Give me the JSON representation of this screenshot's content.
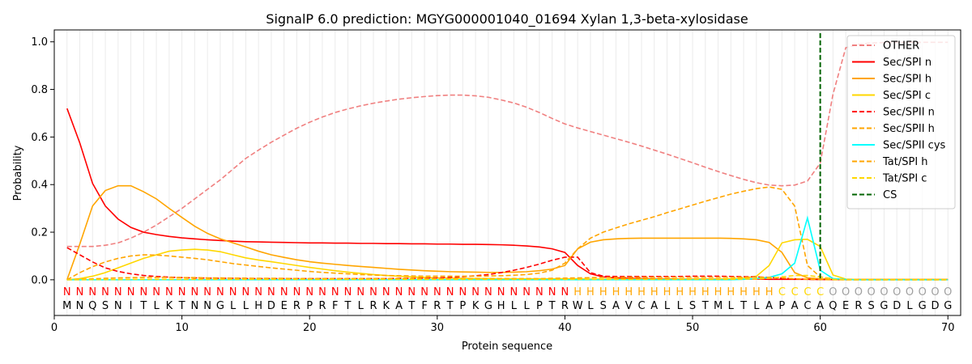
{
  "chart_data": {
    "type": "line",
    "title": "SignalP 6.0 prediction: MGYG000001040_01694 Xylan 1,3-beta-xylosidase",
    "xlabel": "Protein sequence",
    "ylabel": "Probability",
    "xlim": [
      0,
      71
    ],
    "ylim": [
      -0.15,
      1.05
    ],
    "xticks": [
      0,
      10,
      20,
      30,
      40,
      50,
      60,
      70
    ],
    "yticks": [
      0.0,
      0.2,
      0.4,
      0.6,
      0.8,
      1.0
    ],
    "ytick_labels": [
      "0.0",
      "0.2",
      "0.4",
      "0.6",
      "0.8",
      "1.0"
    ],
    "legend_position": "top-right",
    "sequence": [
      "M",
      "N",
      "Q",
      "S",
      "N",
      "I",
      "T",
      "L",
      "K",
      "T",
      "N",
      "N",
      "G",
      "L",
      "L",
      "H",
      "D",
      "E",
      "R",
      "P",
      "R",
      "F",
      "T",
      "L",
      "R",
      "K",
      "A",
      "T",
      "F",
      "R",
      "T",
      "P",
      "K",
      "G",
      "H",
      "L",
      "L",
      "P",
      "T",
      "R",
      "W",
      "L",
      "S",
      "A",
      "V",
      "C",
      "A",
      "L",
      "L",
      "S",
      "T",
      "M",
      "L",
      "T",
      "L",
      "A",
      "P",
      "A",
      "C",
      "A",
      "Q",
      "E",
      "R",
      "S",
      "G",
      "D",
      "L",
      "G",
      "D",
      "G"
    ],
    "regions": [
      "N",
      "N",
      "N",
      "N",
      "N",
      "N",
      "N",
      "N",
      "N",
      "N",
      "N",
      "N",
      "N",
      "N",
      "N",
      "N",
      "N",
      "N",
      "N",
      "N",
      "N",
      "N",
      "N",
      "N",
      "N",
      "N",
      "N",
      "N",
      "N",
      "N",
      "N",
      "N",
      "N",
      "N",
      "N",
      "N",
      "N",
      "N",
      "N",
      "N",
      "H",
      "H",
      "H",
      "H",
      "H",
      "H",
      "H",
      "H",
      "H",
      "H",
      "H",
      "H",
      "H",
      "H",
      "H",
      "H",
      "C",
      "C",
      "C",
      "C",
      "O",
      "O",
      "O",
      "O",
      "O",
      "O",
      "O",
      "O",
      "O",
      "O"
    ],
    "region_colors": {
      "N": "#ff0000",
      "H": "#ffa500",
      "C": "#ffd700",
      "O": "#a0a0a0"
    },
    "cs_position": 60,
    "series": [
      {
        "name": "OTHER",
        "color": "#f08080",
        "dash": "dashed",
        "values": [
          0.14,
          0.14,
          0.14,
          0.145,
          0.155,
          0.175,
          0.2,
          0.23,
          0.265,
          0.3,
          0.34,
          0.38,
          0.42,
          0.465,
          0.51,
          0.545,
          0.578,
          0.608,
          0.637,
          0.662,
          0.684,
          0.703,
          0.718,
          0.731,
          0.742,
          0.751,
          0.759,
          0.765,
          0.77,
          0.774,
          0.776,
          0.776,
          0.773,
          0.767,
          0.756,
          0.743,
          0.725,
          0.703,
          0.678,
          0.655,
          0.638,
          0.623,
          0.608,
          0.593,
          0.578,
          0.562,
          0.545,
          0.528,
          0.51,
          0.492,
          0.473,
          0.455,
          0.438,
          0.422,
          0.408,
          0.398,
          0.395,
          0.398,
          0.415,
          0.49,
          0.78,
          0.975,
          0.99,
          0.995,
          0.997,
          0.998,
          0.998,
          0.998,
          0.998,
          0.998
        ]
      },
      {
        "name": "Sec/SPI n",
        "color": "#ff0000",
        "dash": "solid",
        "values": [
          0.72,
          0.575,
          0.405,
          0.31,
          0.255,
          0.22,
          0.2,
          0.19,
          0.182,
          0.176,
          0.172,
          0.168,
          0.165,
          0.162,
          0.16,
          0.159,
          0.158,
          0.157,
          0.156,
          0.155,
          0.155,
          0.154,
          0.154,
          0.153,
          0.153,
          0.152,
          0.152,
          0.151,
          0.151,
          0.15,
          0.15,
          0.149,
          0.149,
          0.148,
          0.147,
          0.145,
          0.142,
          0.138,
          0.13,
          0.115,
          0.06,
          0.025,
          0.012,
          0.008,
          0.006,
          0.005,
          0.004,
          0.004,
          0.003,
          0.003,
          0.003,
          0.003,
          0.003,
          0.003,
          0.003,
          0.002,
          0.002,
          0.002,
          0.002,
          0.001,
          0.001,
          0.001,
          0.001,
          0.001,
          0.001,
          0.001,
          0.001,
          0.001,
          0.001,
          0.001
        ]
      },
      {
        "name": "Sec/SPI h",
        "color": "#ffa500",
        "dash": "solid",
        "values": [
          0.0,
          0.15,
          0.31,
          0.375,
          0.395,
          0.395,
          0.37,
          0.34,
          0.3,
          0.262,
          0.225,
          0.195,
          0.172,
          0.155,
          0.138,
          0.12,
          0.105,
          0.094,
          0.084,
          0.076,
          0.07,
          0.065,
          0.06,
          0.056,
          0.052,
          0.048,
          0.044,
          0.041,
          0.038,
          0.036,
          0.034,
          0.033,
          0.032,
          0.031,
          0.031,
          0.032,
          0.034,
          0.038,
          0.045,
          0.06,
          0.13,
          0.158,
          0.168,
          0.172,
          0.174,
          0.175,
          0.175,
          0.175,
          0.175,
          0.175,
          0.175,
          0.175,
          0.174,
          0.172,
          0.168,
          0.157,
          0.115,
          0.03,
          0.008,
          0.004,
          0.002,
          0.001,
          0.001,
          0.001,
          0.001,
          0.001,
          0.001,
          0.001,
          0.001,
          0.001
        ]
      },
      {
        "name": "Sec/SPI c",
        "color": "#ffd700",
        "dash": "solid",
        "values": [
          0.0,
          0.005,
          0.015,
          0.03,
          0.05,
          0.07,
          0.09,
          0.105,
          0.12,
          0.125,
          0.128,
          0.125,
          0.118,
          0.105,
          0.092,
          0.083,
          0.076,
          0.068,
          0.06,
          0.052,
          0.045,
          0.038,
          0.032,
          0.027,
          0.022,
          0.018,
          0.015,
          0.012,
          0.01,
          0.008,
          0.007,
          0.006,
          0.005,
          0.005,
          0.004,
          0.004,
          0.004,
          0.004,
          0.004,
          0.004,
          0.004,
          0.003,
          0.003,
          0.003,
          0.003,
          0.003,
          0.003,
          0.003,
          0.003,
          0.003,
          0.003,
          0.003,
          0.004,
          0.006,
          0.015,
          0.06,
          0.155,
          0.168,
          0.17,
          0.14,
          0.02,
          0.003,
          0.001,
          0.001,
          0.001,
          0.001,
          0.001,
          0.001,
          0.001,
          0.001
        ]
      },
      {
        "name": "Sec/SPII n",
        "color": "#ff0000",
        "dash": "dashed",
        "values": [
          0.135,
          0.105,
          0.075,
          0.05,
          0.035,
          0.025,
          0.018,
          0.014,
          0.011,
          0.009,
          0.008,
          0.007,
          0.006,
          0.006,
          0.005,
          0.005,
          0.005,
          0.005,
          0.005,
          0.005,
          0.005,
          0.005,
          0.005,
          0.005,
          0.005,
          0.005,
          0.006,
          0.006,
          0.007,
          0.008,
          0.01,
          0.013,
          0.017,
          0.022,
          0.03,
          0.04,
          0.052,
          0.066,
          0.082,
          0.095,
          0.095,
          0.03,
          0.015,
          0.014,
          0.014,
          0.014,
          0.014,
          0.014,
          0.014,
          0.015,
          0.015,
          0.015,
          0.014,
          0.013,
          0.012,
          0.01,
          0.007,
          0.004,
          0.002,
          0.001,
          0.001,
          0.0,
          0.0,
          0.0,
          0.0,
          0.0,
          0.0,
          0.0,
          0.0,
          0.0
        ]
      },
      {
        "name": "Sec/SPII h",
        "color": "#ffa500",
        "dash": "dashed",
        "values": [
          0.0,
          0.03,
          0.055,
          0.075,
          0.09,
          0.1,
          0.105,
          0.104,
          0.1,
          0.095,
          0.09,
          0.084,
          0.076,
          0.068,
          0.062,
          0.056,
          0.05,
          0.045,
          0.04,
          0.035,
          0.031,
          0.028,
          0.025,
          0.022,
          0.02,
          0.018,
          0.017,
          0.016,
          0.015,
          0.015,
          0.015,
          0.015,
          0.015,
          0.016,
          0.017,
          0.019,
          0.022,
          0.028,
          0.04,
          0.07,
          0.13,
          0.175,
          0.2,
          0.218,
          0.235,
          0.25,
          0.265,
          0.282,
          0.298,
          0.314,
          0.33,
          0.345,
          0.36,
          0.372,
          0.383,
          0.39,
          0.38,
          0.31,
          0.06,
          0.012,
          0.004,
          0.002,
          0.001,
          0.001,
          0.001,
          0.001,
          0.001,
          0.001,
          0.001,
          0.001
        ]
      },
      {
        "name": "Sec/SPII cys",
        "color": "#00ffff",
        "dash": "solid",
        "values": [
          0.0,
          0.0,
          0.0,
          0.0,
          0.0,
          0.0,
          0.0,
          0.0,
          0.0,
          0.0,
          0.0,
          0.0,
          0.0,
          0.0,
          0.0,
          0.0,
          0.0,
          0.0,
          0.0,
          0.0,
          0.0,
          0.0,
          0.0,
          0.0,
          0.0,
          0.0,
          0.0,
          0.0,
          0.0,
          0.0,
          0.0,
          0.0,
          0.0,
          0.0,
          0.0,
          0.0,
          0.0,
          0.0,
          0.0,
          0.0,
          0.0,
          0.0,
          0.0,
          0.0,
          0.0,
          0.0,
          0.0,
          0.0,
          0.0,
          0.0,
          0.0,
          0.0,
          0.0,
          0.002,
          0.005,
          0.01,
          0.025,
          0.07,
          0.26,
          0.04,
          0.005,
          0.001,
          0.0,
          0.0,
          0.0,
          0.0,
          0.0,
          0.0,
          0.0,
          0.0
        ]
      },
      {
        "name": "Tat/SPI h",
        "color": "#ffa500",
        "dash": "dashed",
        "values": [
          0.0,
          0.002,
          0.004,
          0.006,
          0.008,
          0.009,
          0.01,
          0.01,
          0.01,
          0.009,
          0.009,
          0.008,
          0.008,
          0.007,
          0.007,
          0.006,
          0.006,
          0.006,
          0.005,
          0.005,
          0.005,
          0.005,
          0.005,
          0.005,
          0.005,
          0.005,
          0.005,
          0.005,
          0.005,
          0.005,
          0.005,
          0.005,
          0.005,
          0.005,
          0.005,
          0.005,
          0.005,
          0.005,
          0.006,
          0.007,
          0.008,
          0.009,
          0.01,
          0.01,
          0.011,
          0.011,
          0.011,
          0.011,
          0.011,
          0.011,
          0.011,
          0.011,
          0.011,
          0.011,
          0.011,
          0.01,
          0.008,
          0.004,
          0.002,
          0.001,
          0.0,
          0.0,
          0.0,
          0.0,
          0.0,
          0.0,
          0.0,
          0.0,
          0.0,
          0.0
        ]
      },
      {
        "name": "Tat/SPI c",
        "color": "#ffd700",
        "dash": "dashed",
        "values": [
          0.0,
          0.0,
          0.001,
          0.001,
          0.001,
          0.002,
          0.002,
          0.002,
          0.002,
          0.002,
          0.002,
          0.002,
          0.002,
          0.002,
          0.002,
          0.002,
          0.002,
          0.002,
          0.002,
          0.002,
          0.002,
          0.002,
          0.002,
          0.002,
          0.002,
          0.002,
          0.002,
          0.002,
          0.002,
          0.002,
          0.002,
          0.002,
          0.002,
          0.002,
          0.002,
          0.002,
          0.002,
          0.002,
          0.002,
          0.002,
          0.002,
          0.002,
          0.002,
          0.002,
          0.002,
          0.002,
          0.002,
          0.002,
          0.002,
          0.002,
          0.002,
          0.002,
          0.002,
          0.003,
          0.004,
          0.006,
          0.012,
          0.018,
          0.018,
          0.012,
          0.002,
          0.0,
          0.0,
          0.0,
          0.0,
          0.0,
          0.0,
          0.0,
          0.0,
          0.0
        ]
      }
    ],
    "legend": [
      {
        "name": "OTHER",
        "color": "#f08080",
        "dash": "dashed"
      },
      {
        "name": "Sec/SPI n",
        "color": "#ff0000",
        "dash": "solid"
      },
      {
        "name": "Sec/SPI h",
        "color": "#ffa500",
        "dash": "solid"
      },
      {
        "name": "Sec/SPI c",
        "color": "#ffd700",
        "dash": "solid"
      },
      {
        "name": "Sec/SPII n",
        "color": "#ff0000",
        "dash": "dashed"
      },
      {
        "name": "Sec/SPII h",
        "color": "#ffa500",
        "dash": "dashed"
      },
      {
        "name": "Sec/SPII cys",
        "color": "#00ffff",
        "dash": "solid"
      },
      {
        "name": "Tat/SPI h",
        "color": "#ffa500",
        "dash": "dashed"
      },
      {
        "name": "Tat/SPI c",
        "color": "#ffd700",
        "dash": "dashed"
      },
      {
        "name": "CS",
        "color": "#006400",
        "dash": "dashed"
      }
    ]
  }
}
